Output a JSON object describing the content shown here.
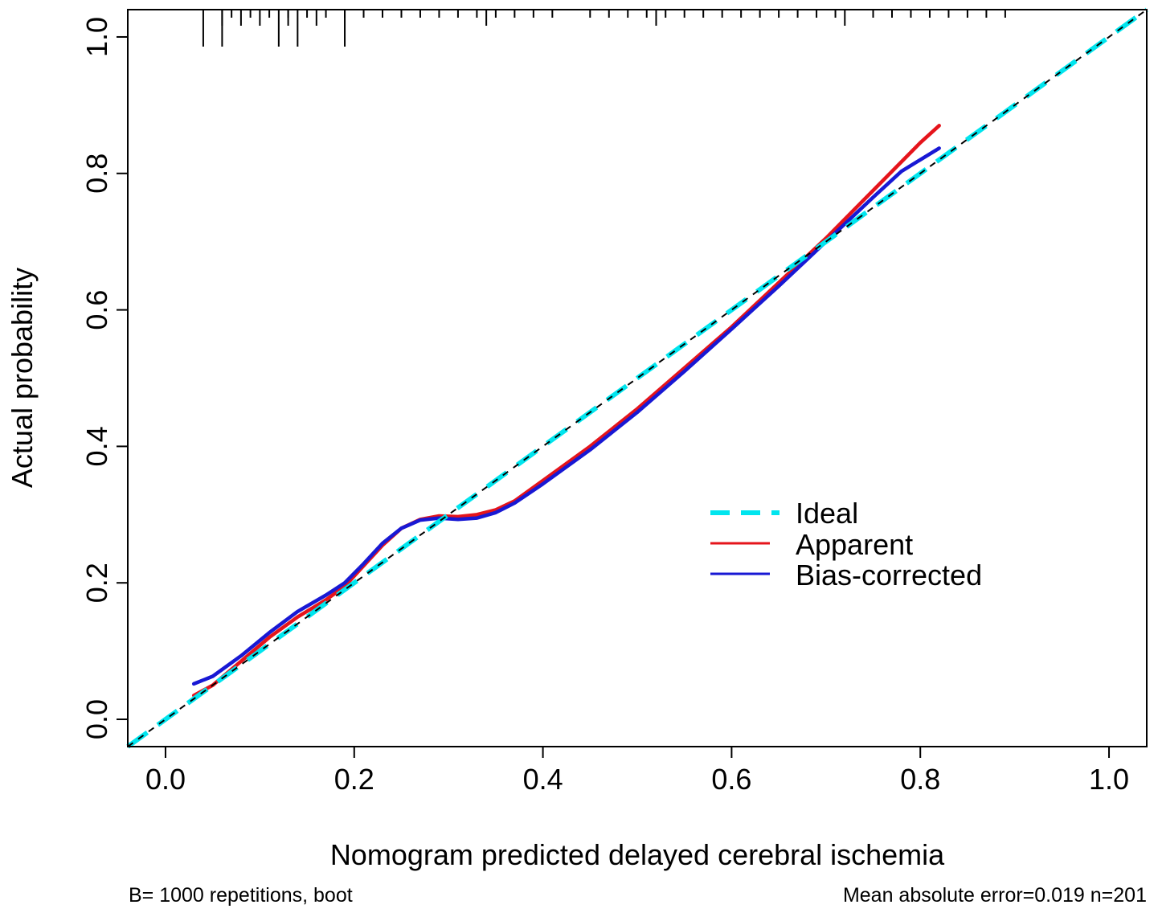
{
  "chart_data": {
    "type": "line",
    "title": "",
    "xlabel": "Nomogram predicted delayed cerebral ischemia",
    "ylabel": "Actual probability",
    "xlim": [
      -0.04,
      1.04
    ],
    "ylim": [
      -0.04,
      1.04
    ],
    "x_ticks": [
      0.0,
      0.2,
      0.4,
      0.6,
      0.8,
      1.0
    ],
    "x_tick_labels": [
      "0.0",
      "0.2",
      "0.4",
      "0.6",
      "0.8",
      "1.0"
    ],
    "y_ticks": [
      0.0,
      0.2,
      0.4,
      0.6,
      0.8,
      1.0
    ],
    "y_tick_labels": [
      "0.0",
      "0.2",
      "0.4",
      "0.6",
      "0.8",
      "1.0"
    ],
    "grid": false,
    "legend_position": "center-right",
    "series": [
      {
        "name": "Ideal",
        "style": "dashed",
        "color": "#00E5EE",
        "x": [
          -0.04,
          1.04
        ],
        "y": [
          -0.04,
          1.04
        ]
      },
      {
        "name": "Apparent",
        "style": "solid",
        "color": "#E5141B",
        "x": [
          0.03,
          0.05,
          0.08,
          0.11,
          0.14,
          0.17,
          0.19,
          0.21,
          0.23,
          0.25,
          0.27,
          0.29,
          0.31,
          0.33,
          0.35,
          0.37,
          0.4,
          0.45,
          0.5,
          0.55,
          0.6,
          0.65,
          0.7,
          0.75,
          0.8,
          0.82
        ],
        "y": [
          0.035,
          0.05,
          0.085,
          0.12,
          0.15,
          0.175,
          0.195,
          0.225,
          0.255,
          0.28,
          0.293,
          0.298,
          0.297,
          0.3,
          0.307,
          0.32,
          0.35,
          0.4,
          0.455,
          0.515,
          0.575,
          0.64,
          0.705,
          0.775,
          0.845,
          0.87
        ]
      },
      {
        "name": "Bias-corrected",
        "style": "solid",
        "color": "#1818D4",
        "x": [
          0.03,
          0.05,
          0.08,
          0.11,
          0.14,
          0.17,
          0.19,
          0.21,
          0.23,
          0.25,
          0.27,
          0.29,
          0.31,
          0.33,
          0.35,
          0.37,
          0.4,
          0.45,
          0.5,
          0.55,
          0.6,
          0.65,
          0.7,
          0.75,
          0.78,
          0.8,
          0.82
        ],
        "y": [
          0.052,
          0.063,
          0.093,
          0.127,
          0.158,
          0.182,
          0.2,
          0.228,
          0.258,
          0.28,
          0.292,
          0.295,
          0.293,
          0.295,
          0.303,
          0.317,
          0.345,
          0.395,
          0.45,
          0.51,
          0.572,
          0.635,
          0.7,
          0.765,
          0.803,
          0.82,
          0.837
        ]
      }
    ],
    "rug": {
      "short": [
        0.07,
        0.09,
        0.11,
        0.13,
        0.15,
        0.17,
        0.19,
        0.21,
        0.23,
        0.25,
        0.27,
        0.29,
        0.31,
        0.33,
        0.35,
        0.37,
        0.39,
        0.41,
        0.45,
        0.47,
        0.49,
        0.51,
        0.53,
        0.55,
        0.57,
        0.59,
        0.61,
        0.63,
        0.65,
        0.67,
        0.69,
        0.71,
        0.75,
        0.77,
        0.79,
        0.81,
        0.83,
        0.85,
        0.87,
        0.89
      ],
      "medium": [
        0.06,
        0.08,
        0.1,
        0.13,
        0.16,
        0.34,
        0.52,
        0.72
      ],
      "long": [
        0.04,
        0.06,
        0.12,
        0.14,
        0.19
      ]
    },
    "annotations": {
      "left": "B= 1000 repetitions, boot",
      "right": "Mean absolute error=0.019 n=201"
    }
  }
}
